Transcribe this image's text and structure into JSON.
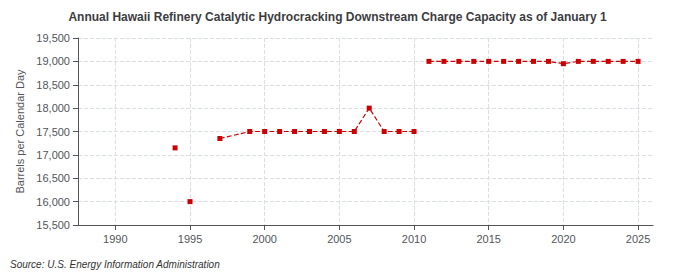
{
  "chart_data": {
    "type": "line",
    "title": "Annual Hawaii Refinery Catalytic Hydrocracking Downstream Charge Capacity as of January 1",
    "ylabel": "Barrels per Calendar Day",
    "source": "Source: U.S. Energy Information Administration",
    "xlim": [
      1987.5,
      2026
    ],
    "xticks": [
      1990,
      1995,
      2000,
      2005,
      2010,
      2015,
      2020,
      2025
    ],
    "ylim": [
      15500,
      19500
    ],
    "yticks": [
      {
        "value": 15500,
        "label": "15,500"
      },
      {
        "value": 16000,
        "label": "16,000"
      },
      {
        "value": 16500,
        "label": "16,500"
      },
      {
        "value": 17000,
        "label": "17,000"
      },
      {
        "value": 17500,
        "label": "17,500"
      },
      {
        "value": 18000,
        "label": "18,000"
      },
      {
        "value": 18500,
        "label": "18,500"
      },
      {
        "value": 19000,
        "label": "19,000"
      },
      {
        "value": 19500,
        "label": "19,500"
      }
    ],
    "grid": true,
    "series": [
      {
        "color": "#cc0000",
        "marker": "square",
        "line_style": "dashed",
        "x": [
          1994
        ],
        "values": [
          17150
        ]
      },
      {
        "color": "#cc0000",
        "marker": "square",
        "line_style": "dashed",
        "x": [
          1995
        ],
        "values": [
          16000
        ]
      },
      {
        "color": "#cc0000",
        "marker": "square",
        "line_style": "dashed",
        "x": [
          1997,
          1999,
          2000,
          2001,
          2002,
          2003,
          2004,
          2005,
          2006,
          2007,
          2008,
          2009,
          2010
        ],
        "values": [
          17350,
          17500,
          17500,
          17500,
          17500,
          17500,
          17500,
          17500,
          17500,
          18000,
          17500,
          17500,
          17500
        ]
      },
      {
        "color": "#cc0000",
        "marker": "square",
        "line_style": "dashed",
        "x": [
          2011,
          2012,
          2013,
          2014,
          2015,
          2016,
          2017,
          2018,
          2019,
          2020,
          2021,
          2022,
          2023,
          2024,
          2025
        ],
        "values": [
          19000,
          19000,
          19000,
          19000,
          19000,
          19000,
          19000,
          19000,
          19000,
          18950,
          19000,
          19000,
          19000,
          19000,
          19000
        ]
      }
    ]
  }
}
